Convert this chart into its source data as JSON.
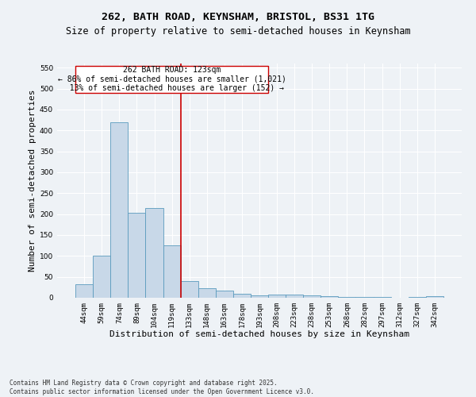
{
  "title_line1": "262, BATH ROAD, KEYNSHAM, BRISTOL, BS31 1TG",
  "title_line2": "Size of property relative to semi-detached houses in Keynsham",
  "xlabel": "Distribution of semi-detached houses by size in Keynsham",
  "ylabel": "Number of semi-detached properties",
  "categories": [
    "44sqm",
    "59sqm",
    "74sqm",
    "89sqm",
    "104sqm",
    "119sqm",
    "133sqm",
    "148sqm",
    "163sqm",
    "178sqm",
    "193sqm",
    "208sqm",
    "223sqm",
    "238sqm",
    "253sqm",
    "268sqm",
    "282sqm",
    "297sqm",
    "312sqm",
    "327sqm",
    "342sqm"
  ],
  "values": [
    33,
    101,
    420,
    204,
    215,
    126,
    39,
    23,
    18,
    9,
    5,
    7,
    7,
    5,
    3,
    1,
    1,
    1,
    0,
    1,
    3
  ],
  "bar_color": "#c8d8e8",
  "bar_edge_color": "#5a9abd",
  "vline_x": 5.5,
  "vline_color": "#cc0000",
  "annotation_line1": "262 BATH ROAD: 123sqm",
  "annotation_line2": "← 86% of semi-detached houses are smaller (1,021)",
  "annotation_line3": "  13% of semi-detached houses are larger (152) →",
  "annotation_box_color": "#ffffff",
  "annotation_box_edge": "#cc0000",
  "ylim": [
    0,
    560
  ],
  "yticks": [
    0,
    50,
    100,
    150,
    200,
    250,
    300,
    350,
    400,
    450,
    500,
    550
  ],
  "footnote": "Contains HM Land Registry data © Crown copyright and database right 2025.\nContains public sector information licensed under the Open Government Licence v3.0.",
  "bg_color": "#eef2f6",
  "plot_bg_color": "#eef2f6",
  "grid_color": "#ffffff",
  "title_fontsize": 9.5,
  "subtitle_fontsize": 8.5,
  "tick_fontsize": 6.5,
  "label_fontsize": 8,
  "annot_fontsize": 7,
  "footnote_fontsize": 5.5
}
